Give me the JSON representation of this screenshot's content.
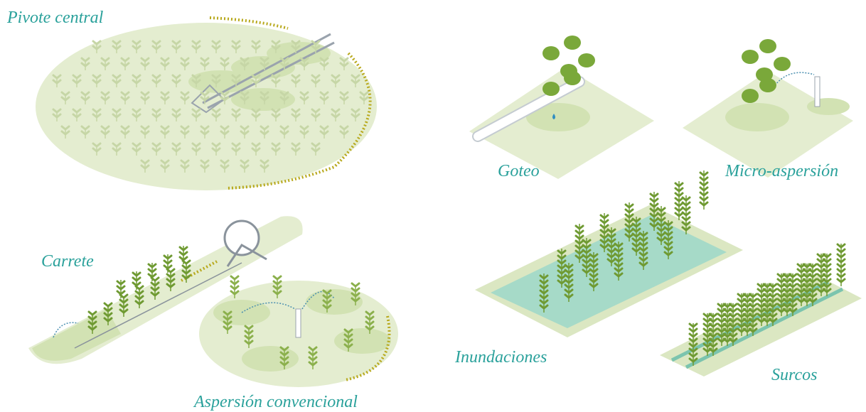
{
  "panels": [
    {
      "label": "Pivote central"
    },
    {
      "label": "Goteo"
    },
    {
      "label": "Micro-aspersión"
    },
    {
      "label": "Carrete"
    },
    {
      "label": "Aspersión convencional"
    },
    {
      "label": "Inundaciones"
    },
    {
      "label": "Surcos"
    }
  ]
}
